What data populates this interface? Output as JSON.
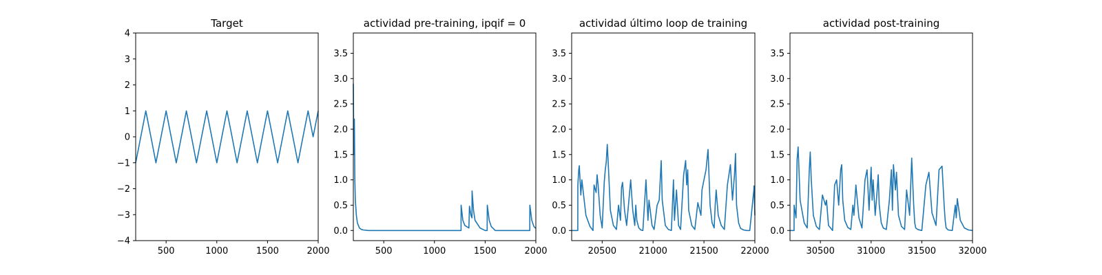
{
  "chart_data": [
    {
      "type": "line",
      "title": "Target",
      "xlim": [
        200,
        2000
      ],
      "ylim": [
        -4,
        4
      ],
      "xticks": [
        500,
        1000,
        1500,
        2000
      ],
      "yticks": [
        -4,
        -3,
        -2,
        -1,
        0,
        1,
        2,
        3,
        4
      ],
      "xtick_labels": [
        "500",
        "1000",
        "1500",
        "2000"
      ],
      "ytick_labels": [
        "−4",
        "−3",
        "−2",
        "−1",
        "0",
        "1",
        "2",
        "3",
        "4"
      ],
      "series": [
        {
          "x": [
            200,
            250,
            300,
            350,
            400,
            450,
            500,
            550,
            600,
            650,
            700,
            750,
            800,
            850,
            900,
            950,
            1000,
            1050,
            1100,
            1150,
            1200,
            1250,
            1300,
            1350,
            1400,
            1450,
            1500,
            1550,
            1600,
            1650,
            1700,
            1750,
            1800,
            1850,
            1900,
            1950,
            2000
          ],
          "values": [
            -1,
            0,
            1,
            0,
            -1,
            0,
            1,
            0,
            -1,
            0,
            1,
            0,
            -1,
            0,
            1,
            0,
            -1,
            0,
            1,
            0,
            -1,
            0,
            1,
            0,
            -1,
            0,
            1,
            0,
            -1,
            0,
            1,
            0,
            -1,
            0,
            1,
            0,
            1
          ]
        }
      ]
    },
    {
      "type": "line",
      "title": "actividad pre-training, ipqif = 0",
      "xlim": [
        200,
        2000
      ],
      "ylim": [
        -0.2,
        3.9
      ],
      "xticks": [
        500,
        1000,
        1500,
        2000
      ],
      "yticks": [
        0,
        0.5,
        1,
        1.5,
        2,
        2.5,
        3,
        3.5
      ],
      "xtick_labels": [
        "500",
        "1000",
        "1500",
        "2000"
      ],
      "ytick_labels": [
        "0.0",
        "0.5",
        "1.0",
        "1.5",
        "2.0",
        "2.5",
        "3.0",
        "3.5"
      ],
      "series": [
        {
          "x": [
            200,
            205,
            210,
            215,
            220,
            230,
            240,
            260,
            280,
            300,
            350,
            1262,
            1263,
            1280,
            1300,
            1340,
            1345,
            1360,
            1370,
            1371,
            1385,
            1400,
            1450,
            1500,
            1520,
            1521,
            1540,
            1560,
            1600,
            1940,
            1941,
            1960,
            1980,
            2000
          ],
          "values": [
            2.9,
            1.5,
            2.2,
            1.0,
            0.6,
            0.3,
            0.15,
            0.05,
            0.02,
            0.01,
            0.0,
            0.0,
            0.5,
            0.2,
            0.1,
            0.05,
            0.48,
            0.3,
            0.25,
            0.78,
            0.4,
            0.2,
            0.05,
            0.0,
            0.0,
            0.5,
            0.2,
            0.08,
            0.0,
            0.0,
            0.5,
            0.2,
            0.08,
            0.04
          ]
        }
      ]
    },
    {
      "type": "line",
      "title": "actividad último loop de training",
      "xlim": [
        20200,
        22000
      ],
      "ylim": [
        -0.2,
        3.9
      ],
      "xticks": [
        20500,
        21000,
        21500,
        22000
      ],
      "yticks": [
        0,
        0.5,
        1,
        1.5,
        2,
        2.5,
        3,
        3.5
      ],
      "xtick_labels": [
        "20500",
        "21000",
        "21500",
        "22000"
      ],
      "ytick_labels": [
        "0.0",
        "0.5",
        "1.0",
        "1.5",
        "2.0",
        "2.5",
        "3.0",
        "3.5"
      ],
      "series": [
        {
          "x": [
            20200,
            20260,
            20261,
            20270,
            20275,
            20290,
            20300,
            20340,
            20380,
            20410,
            20420,
            20440,
            20450,
            20460,
            20480,
            20500,
            20520,
            20530,
            20540,
            20550,
            20560,
            20580,
            20610,
            20640,
            20660,
            20680,
            20690,
            20700,
            20720,
            20740,
            20760,
            20780,
            20800,
            20820,
            20830,
            20840,
            20860,
            20880,
            20900,
            20930,
            20950,
            20960,
            20990,
            21010,
            21040,
            21060,
            21070,
            21080,
            21090,
            21120,
            21150,
            21180,
            21200,
            21210,
            21230,
            21250,
            21270,
            21300,
            21320,
            21330,
            21340,
            21350,
            21380,
            21410,
            21440,
            21470,
            21480,
            21500,
            21520,
            21540,
            21560,
            21580,
            21600,
            21610,
            21620,
            21640,
            21670,
            21700,
            21730,
            21760,
            21780,
            21800,
            21810,
            21820,
            21840,
            21860,
            21890,
            21920,
            21950,
            21975,
            21990,
            21991,
            22000
          ],
          "values": [
            0.0,
            0.0,
            0.9,
            1.2,
            1.28,
            0.7,
            1.0,
            0.3,
            0.08,
            0.0,
            0.9,
            0.75,
            1.1,
            0.9,
            0.3,
            0.05,
            0.95,
            1.2,
            1.35,
            1.7,
            1.3,
            0.4,
            0.1,
            0.02,
            0.5,
            0.2,
            0.85,
            0.95,
            0.4,
            0.1,
            0.55,
            1.0,
            0.4,
            0.1,
            0.5,
            0.2,
            0.05,
            0.01,
            0.0,
            1.0,
            0.2,
            0.6,
            0.1,
            0.02,
            0.5,
            0.6,
            1.0,
            1.38,
            0.6,
            0.1,
            0.02,
            0.0,
            1.0,
            0.2,
            0.8,
            0.1,
            0.02,
            1.1,
            1.38,
            0.9,
            1.2,
            0.4,
            0.1,
            0.02,
            0.55,
            0.3,
            0.8,
            1.0,
            1.2,
            1.6,
            0.5,
            0.15,
            0.05,
            0.5,
            0.8,
            0.3,
            0.1,
            0.02,
            0.9,
            1.3,
            0.6,
            1.1,
            1.52,
            0.5,
            0.15,
            0.04,
            0.01,
            0.0,
            0.0,
            0.5,
            0.8,
            0.88,
            0.3
          ]
        }
      ]
    },
    {
      "type": "line",
      "title": "actividad post-training",
      "xlim": [
        30200,
        32000
      ],
      "ylim": [
        -0.2,
        3.9
      ],
      "xticks": [
        30500,
        31000,
        31500,
        32000
      ],
      "yticks": [
        0,
        0.5,
        1,
        1.5,
        2,
        2.5,
        3,
        3.5
      ],
      "xtick_labels": [
        "30500",
        "31000",
        "31500",
        "32000"
      ],
      "ytick_labels": [
        "0.0",
        "0.5",
        "1.0",
        "1.5",
        "2.0",
        "2.5",
        "3.0",
        "3.5"
      ],
      "series": [
        {
          "x": [
            30200,
            30240,
            30241,
            30260,
            30270,
            30280,
            30300,
            30340,
            30370,
            30390,
            30400,
            30410,
            30430,
            30460,
            30490,
            30520,
            30550,
            30560,
            30580,
            30620,
            30640,
            30660,
            30680,
            30700,
            30710,
            30720,
            30740,
            30770,
            30800,
            30820,
            30830,
            30850,
            30880,
            30910,
            30940,
            30960,
            30980,
            31000,
            31010,
            31020,
            31040,
            31060,
            31070,
            31080,
            31100,
            31120,
            31150,
            31180,
            31200,
            31210,
            31220,
            31240,
            31250,
            31270,
            31300,
            31330,
            31350,
            31380,
            31400,
            31420,
            31430,
            31440,
            31460,
            31500,
            31540,
            31570,
            31600,
            31640,
            31670,
            31700,
            31720,
            31730,
            31740,
            31760,
            31800,
            31830,
            31840,
            31850,
            31880,
            31920,
            31960,
            32000
          ],
          "values": [
            0.0,
            0.0,
            0.5,
            0.25,
            1.4,
            1.65,
            0.6,
            0.15,
            0.05,
            1.2,
            1.55,
            1.0,
            0.3,
            0.08,
            0.02,
            0.7,
            0.5,
            0.6,
            0.1,
            0.0,
            0.9,
            1.0,
            0.5,
            1.2,
            1.3,
            0.6,
            0.2,
            0.06,
            0.02,
            0.5,
            0.3,
            0.9,
            0.25,
            0.05,
            1.0,
            1.2,
            0.4,
            1.25,
            0.6,
            1.0,
            0.3,
            0.8,
            1.1,
            0.5,
            0.15,
            0.05,
            0.02,
            0.6,
            1.2,
            0.4,
            1.3,
            0.8,
            1.15,
            0.3,
            0.08,
            0.02,
            0.8,
            0.3,
            1.43,
            0.5,
            0.15,
            0.05,
            0.02,
            0.0,
            0.9,
            1.15,
            0.35,
            0.1,
            1.2,
            1.27,
            0.5,
            0.2,
            0.05,
            0.01,
            0.0,
            0.5,
            0.25,
            0.63,
            0.2,
            0.05,
            0.01,
            0.0
          ]
        }
      ]
    }
  ]
}
